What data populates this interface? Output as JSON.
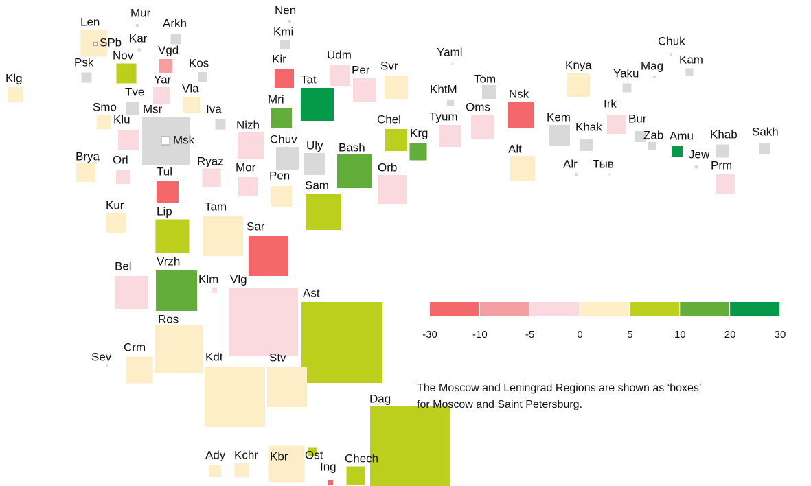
{
  "chart_data": {
    "type": "squares",
    "regions": [
      {
        "name": "Klg",
        "color": "#fdeec8",
        "size": 22
      },
      {
        "name": "Len",
        "color": "#fdeec8",
        "size": 39
      },
      {
        "name": "SPb",
        "color": "#ffffff",
        "size": 5
      },
      {
        "name": "Mur",
        "color": "#d9d9d9",
        "size": 4
      },
      {
        "name": "Kar",
        "color": "#d9d9d9",
        "size": 5
      },
      {
        "name": "Arkh",
        "color": "#d9d9d9",
        "size": 15
      },
      {
        "name": "Vgd",
        "color": "#f4a0a2",
        "size": 20
      },
      {
        "name": "Psk",
        "color": "#d9d9d9",
        "size": 15
      },
      {
        "name": "Nov",
        "color": "#bccf1c",
        "size": 29
      },
      {
        "name": "Yar",
        "color": "#fadadf",
        "size": 24
      },
      {
        "name": "Kos",
        "color": "#d9d9d9",
        "size": 14
      },
      {
        "name": "Vla",
        "color": "#fdeec8",
        "size": 24
      },
      {
        "name": "Tve",
        "color": "#d9d9d9",
        "size": 19
      },
      {
        "name": "Smo",
        "color": "#fdeec8",
        "size": 21
      },
      {
        "name": "Msr",
        "color": "#d9d9d9",
        "size": 70
      },
      {
        "name": "Msk",
        "color": "#ffffff",
        "size": 12
      },
      {
        "name": "Iva",
        "color": "#d9d9d9",
        "size": 15
      },
      {
        "name": "Klu",
        "color": "#fadadf",
        "size": 30
      },
      {
        "name": "Brya",
        "color": "#fdeec8",
        "size": 28
      },
      {
        "name": "Orl",
        "color": "#fadadf",
        "size": 20
      },
      {
        "name": "Tul",
        "color": "#f4686b",
        "size": 32
      },
      {
        "name": "Ryaz",
        "color": "#fadadf",
        "size": 27
      },
      {
        "name": "Kur",
        "color": "#fdeec8",
        "size": 29
      },
      {
        "name": "Lip",
        "color": "#bccf1c",
        "size": 49
      },
      {
        "name": "Tam",
        "color": "#fdeec8",
        "size": 58
      },
      {
        "name": "Bel",
        "color": "#fadadf",
        "size": 48
      },
      {
        "name": "Vrzh",
        "color": "#63ae3a",
        "size": 60
      },
      {
        "name": "Klm",
        "color": "#fadadf",
        "size": 8
      },
      {
        "name": "Sar",
        "color": "#f4686b",
        "size": 58
      },
      {
        "name": "Vlg",
        "color": "#fadadf",
        "size": 100
      },
      {
        "name": "Ast",
        "color": "#bccf1c",
        "size": 118
      },
      {
        "name": "Ros",
        "color": "#fdeec8",
        "size": 70
      },
      {
        "name": "Crm",
        "color": "#fdeec8",
        "size": 39
      },
      {
        "name": "Sev",
        "color": "#d9d9d9",
        "size": 4
      },
      {
        "name": "Kdt",
        "color": "#fdeec8",
        "size": 88
      },
      {
        "name": "Stv",
        "color": "#fdeec8",
        "size": 58
      },
      {
        "name": "Ady",
        "color": "#fdeec8",
        "size": 18
      },
      {
        "name": "Kchr",
        "color": "#fdeec8",
        "size": 21
      },
      {
        "name": "Kbr",
        "color": "#fdeec8",
        "size": 53
      },
      {
        "name": "Ost",
        "color": "#bccf1c",
        "size": 13
      },
      {
        "name": "Ing",
        "color": "#f4686b",
        "size": 8
      },
      {
        "name": "Chech",
        "color": "#bccf1c",
        "size": 27
      },
      {
        "name": "Dag",
        "color": "#bccf1c",
        "size": 116
      },
      {
        "name": "Nen",
        "color": "#d9d9d9",
        "size": 4
      },
      {
        "name": "Kmi",
        "color": "#d9d9d9",
        "size": 14
      },
      {
        "name": "Kir",
        "color": "#f4686b",
        "size": 28
      },
      {
        "name": "Mri",
        "color": "#63ae3a",
        "size": 30
      },
      {
        "name": "Tat",
        "color": "#059a4a",
        "size": 48
      },
      {
        "name": "Udm",
        "color": "#fadadf",
        "size": 30
      },
      {
        "name": "Per",
        "color": "#fadadf",
        "size": 34
      },
      {
        "name": "Svr",
        "color": "#fdeec8",
        "size": 34
      },
      {
        "name": "Nizh",
        "color": "#fadadf",
        "size": 38
      },
      {
        "name": "Chuv",
        "color": "#d9d9d9",
        "size": 34
      },
      {
        "name": "Uly",
        "color": "#d9d9d9",
        "size": 32
      },
      {
        "name": "Mor",
        "color": "#fadadf",
        "size": 28
      },
      {
        "name": "Pen",
        "color": "#fdeec8",
        "size": 30
      },
      {
        "name": "Bash",
        "color": "#63ae3a",
        "size": 50
      },
      {
        "name": "Sam",
        "color": "#bccf1c",
        "size": 52
      },
      {
        "name": "Chel",
        "color": "#bccf1c",
        "size": 32
      },
      {
        "name": "Krg",
        "color": "#63ae3a",
        "size": 25
      },
      {
        "name": "Orb",
        "color": "#fadadf",
        "size": 42
      },
      {
        "name": "Yaml",
        "color": "#d9d9d9",
        "size": 3
      },
      {
        "name": "KhtM",
        "color": "#d9d9d9",
        "size": 10
      },
      {
        "name": "Tyum",
        "color": "#fadadf",
        "size": 32
      },
      {
        "name": "Tom",
        "color": "#d9d9d9",
        "size": 20
      },
      {
        "name": "Oms",
        "color": "#fadadf",
        "size": 34
      },
      {
        "name": "Nsk",
        "color": "#f4686b",
        "size": 38
      },
      {
        "name": "Alt",
        "color": "#fdeec8",
        "size": 36
      },
      {
        "name": "Kem",
        "color": "#d9d9d9",
        "size": 30
      },
      {
        "name": "Khak",
        "color": "#d9d9d9",
        "size": 18
      },
      {
        "name": "Alr",
        "color": "#d9d9d9",
        "size": 4
      },
      {
        "name": "Тыв",
        "color": "#d9d9d9",
        "size": 3
      },
      {
        "name": "Knya",
        "color": "#fdeec8",
        "size": 34
      },
      {
        "name": "Yaku",
        "color": "#d9d9d9",
        "size": 13
      },
      {
        "name": "Mag",
        "color": "#d9d9d9",
        "size": 4
      },
      {
        "name": "Chuk",
        "color": "#d9d9d9",
        "size": 4
      },
      {
        "name": "Kam",
        "color": "#d9d9d9",
        "size": 11
      },
      {
        "name": "Irk",
        "color": "#fadadf",
        "size": 28
      },
      {
        "name": "Bur",
        "color": "#d9d9d9",
        "size": 16
      },
      {
        "name": "Zab",
        "color": "#d9d9d9",
        "size": 12
      },
      {
        "name": "Amu",
        "color": "#059a4a",
        "size": 16
      },
      {
        "name": "Jew",
        "color": "#d9d9d9",
        "size": 5
      },
      {
        "name": "Khab",
        "color": "#d9d9d9",
        "size": 19
      },
      {
        "name": "Sakh",
        "color": "#d9d9d9",
        "size": 16
      },
      {
        "name": "Prm",
        "color": "#fadadf",
        "size": 28
      }
    ],
    "legend": {
      "colors": [
        "#f4686b",
        "#f4a0a2",
        "#fadadf",
        "#fdeec8",
        "#bccf1c",
        "#63ae3a",
        "#059a4a"
      ],
      "ticks": [
        -30,
        -10,
        -5,
        0,
        5,
        10,
        20,
        30
      ]
    },
    "note": [
      "The Moscow and Leningrad Regions are shown as ‘boxes’",
      "for Moscow and Saint Petersburg."
    ]
  }
}
